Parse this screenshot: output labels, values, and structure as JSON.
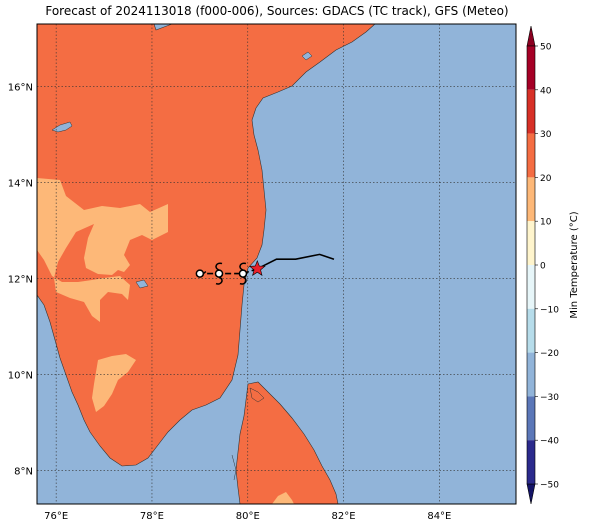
{
  "title": "Forecast of 2024113018 (f000-006), Sources: GDACS (TC track), GFS (Meteo)",
  "map": {
    "lon_range": [
      75.6,
      85.6
    ],
    "lat_range": [
      7.3,
      17.3
    ],
    "lon_ticks": [
      {
        "value": 76,
        "label": "76°E"
      },
      {
        "value": 78,
        "label": "78°E"
      },
      {
        "value": 80,
        "label": "80°E"
      },
      {
        "value": 82,
        "label": "82°E"
      },
      {
        "value": 84,
        "label": "84°E"
      }
    ],
    "lat_ticks": [
      {
        "value": 8,
        "label": "8°N"
      },
      {
        "value": 10,
        "label": "10°N"
      },
      {
        "value": 12,
        "label": "12°N"
      },
      {
        "value": 14,
        "label": "14°N"
      },
      {
        "value": 16,
        "label": "16°N"
      }
    ],
    "gridlines": true,
    "colors": {
      "ocean": "#91b4d9",
      "land_warm": "#f46d43",
      "land_mild": "#fdb878",
      "track": "#000000",
      "current_position": "#e8202a"
    }
  },
  "track": {
    "observed_path": [
      [
        80.2,
        12.2
      ],
      [
        80.6,
        12.4
      ],
      [
        81.0,
        12.4
      ],
      [
        81.5,
        12.5
      ],
      [
        81.8,
        12.4
      ]
    ],
    "forecast_positions": [
      [
        80.2,
        12.2
      ],
      [
        79.9,
        12.1
      ],
      [
        79.4,
        12.1
      ],
      [
        79.0,
        12.1
      ]
    ]
  },
  "colorbar": {
    "label": "Min Temperature (°C)",
    "ticks": [
      "50",
      "40",
      "30",
      "20",
      "10",
      "0",
      "−10",
      "−20",
      "−30",
      "−40",
      "−50"
    ],
    "bins": [
      {
        "from": 40,
        "to": 50,
        "color": "#a50026"
      },
      {
        "from": 30,
        "to": 40,
        "color": "#d73027"
      },
      {
        "from": 20,
        "to": 30,
        "color": "#f46d43"
      },
      {
        "from": 10,
        "to": 20,
        "color": "#fdb878"
      },
      {
        "from": 0,
        "to": 10,
        "color": "#fff5cd"
      },
      {
        "from": -10,
        "to": 0,
        "color": "#e7f6f9"
      },
      {
        "from": -20,
        "to": -10,
        "color": "#b6dcea"
      },
      {
        "from": -30,
        "to": -20,
        "color": "#91b4d9"
      },
      {
        "from": -40,
        "to": -30,
        "color": "#5b77b8"
      },
      {
        "from": -50,
        "to": -40,
        "color": "#2b2a8c"
      }
    ],
    "extend_top_color": "#8b0020",
    "extend_bottom_color": "#141467"
  }
}
